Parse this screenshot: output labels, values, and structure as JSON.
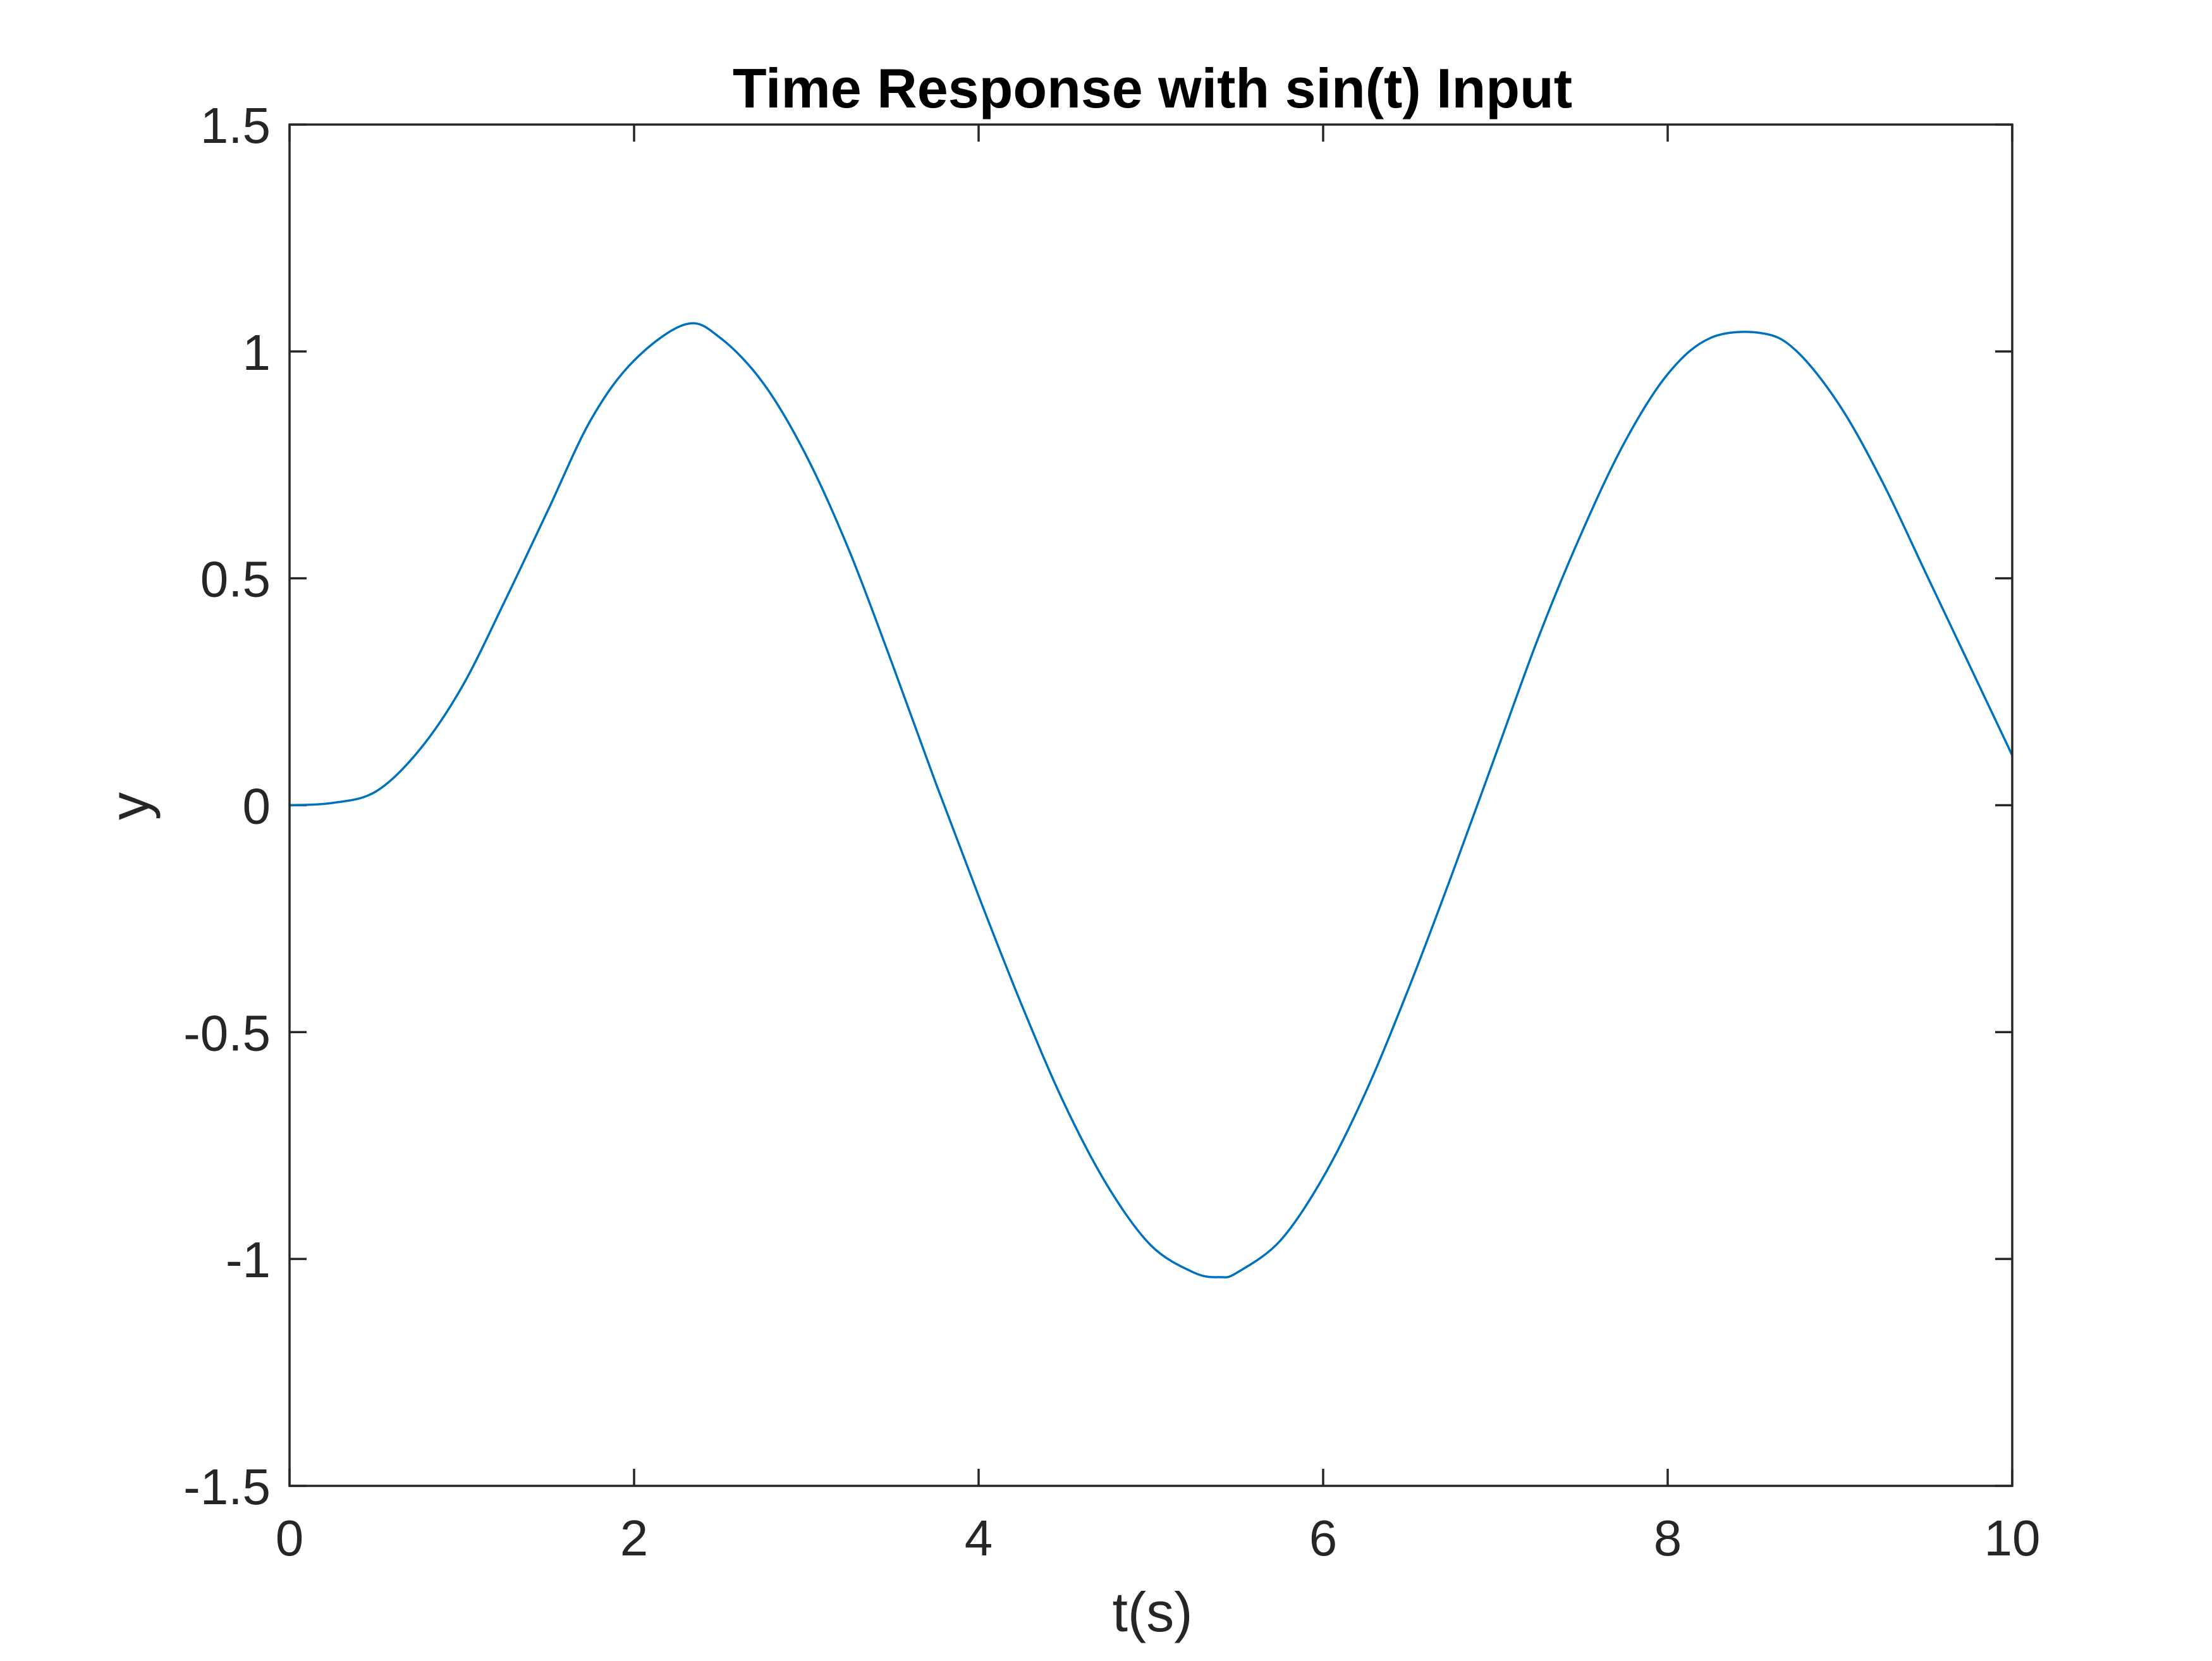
{
  "chart_data": {
    "type": "line",
    "title": "Time Response with sin(t) Input",
    "xlabel": "t(s)",
    "ylabel": "y",
    "xlim": [
      0,
      10
    ],
    "ylim": [
      -1.5,
      1.5
    ],
    "xticks": [
      0,
      2,
      4,
      6,
      8,
      10
    ],
    "xtick_labels": [
      "0",
      "2",
      "4",
      "6",
      "8",
      "10"
    ],
    "yticks": [
      -1.5,
      -1,
      -0.5,
      0,
      0.5,
      1,
      1.5
    ],
    "ytick_labels": [
      "-1.5",
      "-1",
      "-0.5",
      "0",
      "0.5",
      "1",
      "1.5"
    ],
    "grid": false,
    "line_color": "#0072BD",
    "axis_color": "#262626",
    "series": [
      {
        "x": [
          0,
          0.25,
          0.5,
          0.75,
          1.0,
          1.25,
          1.5,
          1.75,
          2.0,
          2.3,
          2.5,
          2.75,
          3.0,
          3.25,
          3.5,
          3.75,
          4.0,
          4.25,
          4.5,
          4.75,
          5.0,
          5.25,
          5.4,
          5.5,
          5.75,
          6.0,
          6.25,
          6.5,
          6.75,
          7.0,
          7.25,
          7.5,
          7.75,
          8.0,
          8.25,
          8.55,
          8.75,
          9.0,
          9.25,
          9.5,
          9.75,
          10.0
        ],
        "y": [
          0,
          0.005,
          0.03,
          0.12,
          0.26,
          0.45,
          0.65,
          0.85,
          0.98,
          1.06,
          1.03,
          0.93,
          0.77,
          0.56,
          0.31,
          0.05,
          -0.2,
          -0.44,
          -0.66,
          -0.84,
          -0.97,
          -1.03,
          -1.04,
          -1.03,
          -0.96,
          -0.82,
          -0.63,
          -0.4,
          -0.15,
          0.11,
          0.37,
          0.6,
          0.8,
          0.95,
          1.03,
          1.04,
          1.0,
          0.88,
          0.71,
          0.51,
          0.31,
          0.11
        ]
      }
    ]
  }
}
